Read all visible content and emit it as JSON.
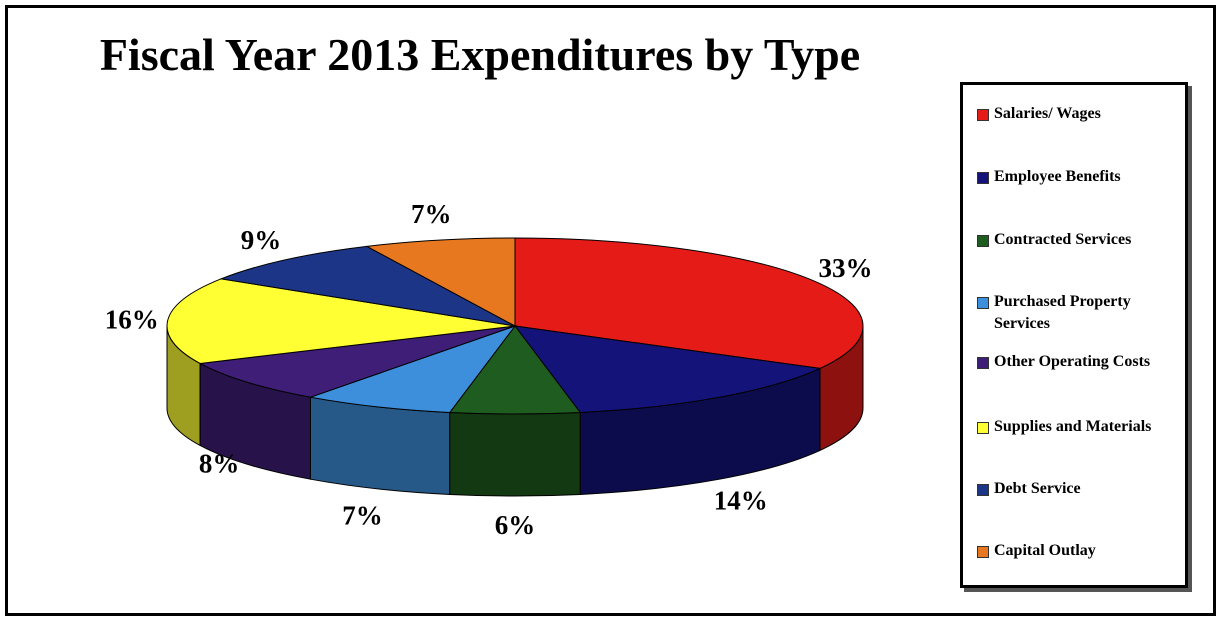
{
  "chart_data": {
    "type": "pie",
    "title": "Fiscal Year 2013 Expenditures by Type",
    "slices": [
      {
        "name": "Salaries/ Wages",
        "value": 33,
        "label": "33%",
        "color": "#e41b17"
      },
      {
        "name": "Employee Benefits",
        "value": 14,
        "label": "14%",
        "color": "#13137a"
      },
      {
        "name": "Contracted Services",
        "value": 6,
        "label": "6%",
        "color": "#1f5c1f"
      },
      {
        "name": "Purchased Property Services",
        "value": 7,
        "label": "7%",
        "color": "#3d8fdb"
      },
      {
        "name": "Other Operating Costs",
        "value": 8,
        "label": "8%",
        "color": "#3f1e78"
      },
      {
        "name": "Supplies and Materials",
        "value": 16,
        "label": "16%",
        "color": "#ffff33"
      },
      {
        "name": "Debt Service",
        "value": 9,
        "label": "9%",
        "color": "#1d3587"
      },
      {
        "name": "Capital Outlay",
        "value": 7,
        "label": "7%",
        "color": "#e8781f"
      }
    ],
    "legend_position": "right",
    "three_d": true
  }
}
